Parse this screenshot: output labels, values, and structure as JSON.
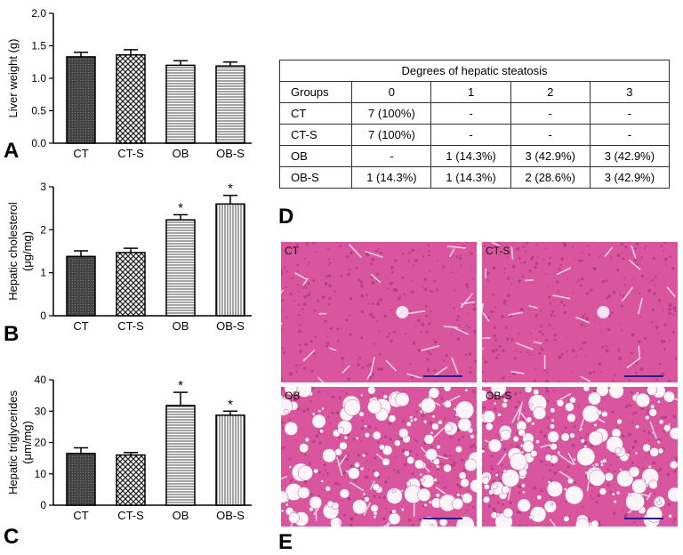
{
  "panel_letters": {
    "a": "A",
    "b": "B",
    "c": "C",
    "d": "D",
    "e": "E"
  },
  "chart_data": [
    {
      "type": "bar",
      "panel": "A",
      "categories": [
        "CT",
        "CT-S",
        "OB",
        "OB-S"
      ],
      "values": [
        1.33,
        1.36,
        1.2,
        1.19
      ],
      "errors": [
        0.07,
        0.08,
        0.07,
        0.06
      ],
      "ylabel": "Liver weight (g)",
      "ylim": [
        0,
        2
      ],
      "yticks": [
        0,
        0.5,
        1,
        1.5,
        2
      ],
      "ytick_labels": [
        "0.0",
        "0.5",
        "1.0",
        "1.5",
        "2.0"
      ],
      "significant": [
        false,
        false,
        false,
        false
      ],
      "sig_marker": "*",
      "patterns": [
        "dark",
        "check",
        "hlines",
        "hlines"
      ]
    },
    {
      "type": "bar",
      "panel": "B",
      "categories": [
        "CT",
        "CT-S",
        "OB",
        "OB-S"
      ],
      "values": [
        1.38,
        1.47,
        2.23,
        2.6
      ],
      "errors": [
        0.13,
        0.1,
        0.12,
        0.2
      ],
      "ylabel": "Hepatic cholesterol\n(μg/mg)",
      "ylim": [
        0,
        3
      ],
      "yticks": [
        0,
        1,
        2,
        3
      ],
      "ytick_labels": [
        "0",
        "1",
        "2",
        "3"
      ],
      "significant": [
        false,
        false,
        true,
        true
      ],
      "sig_marker": "*",
      "patterns": [
        "dark",
        "check",
        "hlines",
        "vlines"
      ]
    },
    {
      "type": "bar",
      "panel": "C",
      "categories": [
        "CT",
        "CT-S",
        "OB",
        "OB-S"
      ],
      "values": [
        16.5,
        16.0,
        31.8,
        28.7
      ],
      "errors": [
        1.8,
        0.8,
        4.2,
        1.3
      ],
      "ylabel": "Hepatic triglycerides\n(μm/mg)",
      "ylim": [
        0,
        40
      ],
      "yticks": [
        0,
        10,
        20,
        30,
        40
      ],
      "ytick_labels": [
        "0",
        "10",
        "20",
        "30",
        "40"
      ],
      "significant": [
        false,
        false,
        true,
        true
      ],
      "sig_marker": "*",
      "patterns": [
        "dark",
        "check",
        "hlines",
        "vlines"
      ]
    }
  ],
  "table": {
    "title": "Degrees of hepatic steatosis",
    "headers": [
      "Groups",
      "0",
      "1",
      "2",
      "3"
    ],
    "rows": [
      [
        "CT",
        "7 (100%)",
        "-",
        "-",
        "-"
      ],
      [
        "CT-S",
        "7 (100%)",
        "-",
        "-",
        "-"
      ],
      [
        "OB",
        "-",
        "1 (14.3%)",
        "3 (42.9%)",
        "3 (42.9%)"
      ],
      [
        "OB-S",
        "1 (14.3%)",
        "1 (14.3%)",
        "2 (28.6%)",
        "3 (42.9%)"
      ]
    ]
  },
  "histology": {
    "labels": [
      "CT",
      "CT-S",
      "OB",
      "OB-S"
    ],
    "colors": {
      "tissue": "#d9569e",
      "background": "#c84a90"
    }
  }
}
